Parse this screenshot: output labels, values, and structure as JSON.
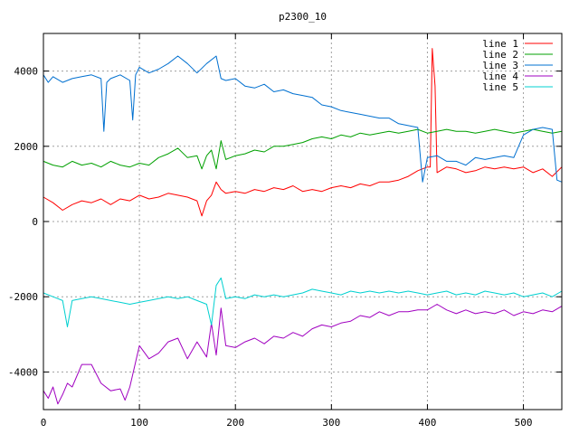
{
  "chart_data": {
    "type": "line",
    "title": "p2300_10",
    "xlabel": "",
    "ylabel": "",
    "xlim": [
      0,
      540
    ],
    "ylim": [
      -5000,
      5000
    ],
    "xticks": [
      0,
      100,
      200,
      300,
      400,
      500
    ],
    "yticks": [
      -4000,
      -2000,
      0,
      2000,
      4000
    ],
    "grid": true,
    "legend_position": "top-right",
    "series": [
      {
        "name": "line 1",
        "color": "#ff0000",
        "points": [
          [
            0,
            650
          ],
          [
            10,
            500
          ],
          [
            20,
            300
          ],
          [
            30,
            450
          ],
          [
            40,
            550
          ],
          [
            50,
            500
          ],
          [
            60,
            600
          ],
          [
            70,
            450
          ],
          [
            80,
            600
          ],
          [
            90,
            550
          ],
          [
            100,
            700
          ],
          [
            110,
            600
          ],
          [
            120,
            650
          ],
          [
            130,
            750
          ],
          [
            140,
            700
          ],
          [
            150,
            650
          ],
          [
            160,
            550
          ],
          [
            165,
            150
          ],
          [
            170,
            550
          ],
          [
            175,
            700
          ],
          [
            180,
            1050
          ],
          [
            185,
            850
          ],
          [
            190,
            750
          ],
          [
            200,
            800
          ],
          [
            210,
            750
          ],
          [
            220,
            850
          ],
          [
            230,
            800
          ],
          [
            240,
            900
          ],
          [
            250,
            850
          ],
          [
            260,
            950
          ],
          [
            270,
            800
          ],
          [
            280,
            850
          ],
          [
            290,
            800
          ],
          [
            300,
            900
          ],
          [
            310,
            950
          ],
          [
            320,
            900
          ],
          [
            330,
            1000
          ],
          [
            340,
            950
          ],
          [
            350,
            1050
          ],
          [
            360,
            1050
          ],
          [
            370,
            1100
          ],
          [
            380,
            1200
          ],
          [
            390,
            1350
          ],
          [
            400,
            1450
          ],
          [
            403,
            1450
          ],
          [
            405,
            4600
          ],
          [
            408,
            3600
          ],
          [
            410,
            1300
          ],
          [
            420,
            1450
          ],
          [
            430,
            1400
          ],
          [
            440,
            1300
          ],
          [
            450,
            1350
          ],
          [
            460,
            1450
          ],
          [
            470,
            1400
          ],
          [
            480,
            1450
          ],
          [
            490,
            1400
          ],
          [
            500,
            1450
          ],
          [
            510,
            1300
          ],
          [
            520,
            1400
          ],
          [
            530,
            1200
          ],
          [
            540,
            1450
          ]
        ]
      },
      {
        "name": "line 2",
        "color": "#00a000",
        "points": [
          [
            0,
            1600
          ],
          [
            10,
            1500
          ],
          [
            20,
            1450
          ],
          [
            30,
            1600
          ],
          [
            40,
            1500
          ],
          [
            50,
            1550
          ],
          [
            60,
            1450
          ],
          [
            70,
            1600
          ],
          [
            80,
            1500
          ],
          [
            90,
            1450
          ],
          [
            100,
            1550
          ],
          [
            110,
            1500
          ],
          [
            120,
            1700
          ],
          [
            130,
            1800
          ],
          [
            140,
            1950
          ],
          [
            150,
            1700
          ],
          [
            160,
            1750
          ],
          [
            165,
            1400
          ],
          [
            170,
            1750
          ],
          [
            175,
            1900
          ],
          [
            180,
            1400
          ],
          [
            185,
            2150
          ],
          [
            190,
            1650
          ],
          [
            200,
            1750
          ],
          [
            210,
            1800
          ],
          [
            220,
            1900
          ],
          [
            230,
            1850
          ],
          [
            240,
            2000
          ],
          [
            250,
            2000
          ],
          [
            260,
            2050
          ],
          [
            270,
            2100
          ],
          [
            280,
            2200
          ],
          [
            290,
            2250
          ],
          [
            300,
            2200
          ],
          [
            310,
            2300
          ],
          [
            320,
            2250
          ],
          [
            330,
            2350
          ],
          [
            340,
            2300
          ],
          [
            350,
            2350
          ],
          [
            360,
            2400
          ],
          [
            370,
            2350
          ],
          [
            380,
            2400
          ],
          [
            390,
            2450
          ],
          [
            400,
            2350
          ],
          [
            410,
            2400
          ],
          [
            420,
            2450
          ],
          [
            430,
            2400
          ],
          [
            440,
            2400
          ],
          [
            450,
            2350
          ],
          [
            460,
            2400
          ],
          [
            470,
            2450
          ],
          [
            480,
            2400
          ],
          [
            490,
            2350
          ],
          [
            500,
            2400
          ],
          [
            510,
            2450
          ],
          [
            520,
            2400
          ],
          [
            530,
            2350
          ],
          [
            540,
            2400
          ]
        ]
      },
      {
        "name": "line 3",
        "color": "#0070d0",
        "points": [
          [
            0,
            3900
          ],
          [
            5,
            3700
          ],
          [
            10,
            3850
          ],
          [
            20,
            3700
          ],
          [
            30,
            3800
          ],
          [
            40,
            3850
          ],
          [
            50,
            3900
          ],
          [
            60,
            3800
          ],
          [
            63,
            2400
          ],
          [
            66,
            3700
          ],
          [
            70,
            3800
          ],
          [
            80,
            3900
          ],
          [
            90,
            3750
          ],
          [
            93,
            2700
          ],
          [
            96,
            3900
          ],
          [
            100,
            4100
          ],
          [
            110,
            3950
          ],
          [
            120,
            4050
          ],
          [
            130,
            4200
          ],
          [
            140,
            4400
          ],
          [
            150,
            4200
          ],
          [
            160,
            3950
          ],
          [
            170,
            4200
          ],
          [
            180,
            4400
          ],
          [
            185,
            3800
          ],
          [
            190,
            3750
          ],
          [
            200,
            3800
          ],
          [
            210,
            3600
          ],
          [
            220,
            3550
          ],
          [
            230,
            3650
          ],
          [
            240,
            3450
          ],
          [
            250,
            3500
          ],
          [
            260,
            3400
          ],
          [
            270,
            3350
          ],
          [
            280,
            3300
          ],
          [
            290,
            3100
          ],
          [
            300,
            3050
          ],
          [
            310,
            2950
          ],
          [
            320,
            2900
          ],
          [
            330,
            2850
          ],
          [
            340,
            2800
          ],
          [
            350,
            2750
          ],
          [
            360,
            2750
          ],
          [
            370,
            2600
          ],
          [
            380,
            2550
          ],
          [
            390,
            2500
          ],
          [
            395,
            1050
          ],
          [
            400,
            1700
          ],
          [
            410,
            1750
          ],
          [
            420,
            1600
          ],
          [
            430,
            1600
          ],
          [
            440,
            1500
          ],
          [
            450,
            1700
          ],
          [
            460,
            1650
          ],
          [
            470,
            1700
          ],
          [
            480,
            1750
          ],
          [
            490,
            1700
          ],
          [
            500,
            2300
          ],
          [
            510,
            2450
          ],
          [
            520,
            2500
          ],
          [
            530,
            2450
          ],
          [
            535,
            1100
          ],
          [
            540,
            1050
          ]
        ]
      },
      {
        "name": "line 4",
        "color": "#a000c0",
        "points": [
          [
            0,
            -4500
          ],
          [
            5,
            -4700
          ],
          [
            10,
            -4400
          ],
          [
            15,
            -4850
          ],
          [
            20,
            -4600
          ],
          [
            25,
            -4300
          ],
          [
            30,
            -4400
          ],
          [
            40,
            -3800
          ],
          [
            50,
            -3800
          ],
          [
            60,
            -4300
          ],
          [
            70,
            -4500
          ],
          [
            80,
            -4450
          ],
          [
            85,
            -4750
          ],
          [
            90,
            -4400
          ],
          [
            100,
            -3300
          ],
          [
            110,
            -3650
          ],
          [
            120,
            -3500
          ],
          [
            130,
            -3200
          ],
          [
            140,
            -3100
          ],
          [
            150,
            -3650
          ],
          [
            160,
            -3200
          ],
          [
            170,
            -3600
          ],
          [
            175,
            -2700
          ],
          [
            180,
            -3550
          ],
          [
            185,
            -2300
          ],
          [
            190,
            -3300
          ],
          [
            200,
            -3350
          ],
          [
            210,
            -3200
          ],
          [
            220,
            -3100
          ],
          [
            230,
            -3250
          ],
          [
            240,
            -3050
          ],
          [
            250,
            -3100
          ],
          [
            260,
            -2950
          ],
          [
            270,
            -3050
          ],
          [
            280,
            -2850
          ],
          [
            290,
            -2750
          ],
          [
            300,
            -2800
          ],
          [
            310,
            -2700
          ],
          [
            320,
            -2650
          ],
          [
            330,
            -2500
          ],
          [
            340,
            -2550
          ],
          [
            350,
            -2400
          ],
          [
            360,
            -2500
          ],
          [
            370,
            -2400
          ],
          [
            380,
            -2400
          ],
          [
            390,
            -2350
          ],
          [
            400,
            -2350
          ],
          [
            410,
            -2200
          ],
          [
            420,
            -2350
          ],
          [
            430,
            -2450
          ],
          [
            440,
            -2350
          ],
          [
            450,
            -2450
          ],
          [
            460,
            -2400
          ],
          [
            470,
            -2450
          ],
          [
            480,
            -2350
          ],
          [
            490,
            -2500
          ],
          [
            500,
            -2400
          ],
          [
            510,
            -2450
          ],
          [
            520,
            -2350
          ],
          [
            530,
            -2400
          ],
          [
            540,
            -2250
          ]
        ]
      },
      {
        "name": "line 5",
        "color": "#00d0d0",
        "points": [
          [
            0,
            -1900
          ],
          [
            10,
            -2000
          ],
          [
            20,
            -2100
          ],
          [
            25,
            -2800
          ],
          [
            30,
            -2100
          ],
          [
            40,
            -2050
          ],
          [
            50,
            -2000
          ],
          [
            60,
            -2050
          ],
          [
            70,
            -2100
          ],
          [
            80,
            -2150
          ],
          [
            90,
            -2200
          ],
          [
            100,
            -2150
          ],
          [
            110,
            -2100
          ],
          [
            120,
            -2050
          ],
          [
            130,
            -2000
          ],
          [
            140,
            -2050
          ],
          [
            150,
            -2000
          ],
          [
            160,
            -2100
          ],
          [
            170,
            -2200
          ],
          [
            175,
            -2750
          ],
          [
            180,
            -1700
          ],
          [
            185,
            -1500
          ],
          [
            190,
            -2050
          ],
          [
            200,
            -2000
          ],
          [
            210,
            -2050
          ],
          [
            220,
            -1950
          ],
          [
            230,
            -2000
          ],
          [
            240,
            -1950
          ],
          [
            250,
            -2000
          ],
          [
            260,
            -1950
          ],
          [
            270,
            -1900
          ],
          [
            280,
            -1800
          ],
          [
            290,
            -1850
          ],
          [
            300,
            -1900
          ],
          [
            310,
            -1950
          ],
          [
            320,
            -1850
          ],
          [
            330,
            -1900
          ],
          [
            340,
            -1850
          ],
          [
            350,
            -1900
          ],
          [
            360,
            -1850
          ],
          [
            370,
            -1900
          ],
          [
            380,
            -1850
          ],
          [
            390,
            -1900
          ],
          [
            400,
            -1950
          ],
          [
            410,
            -1900
          ],
          [
            420,
            -1850
          ],
          [
            430,
            -1950
          ],
          [
            440,
            -1900
          ],
          [
            450,
            -1950
          ],
          [
            460,
            -1850
          ],
          [
            470,
            -1900
          ],
          [
            480,
            -1950
          ],
          [
            490,
            -1900
          ],
          [
            500,
            -2000
          ],
          [
            510,
            -1950
          ],
          [
            520,
            -1900
          ],
          [
            530,
            -2000
          ],
          [
            540,
            -1850
          ]
        ]
      }
    ]
  }
}
